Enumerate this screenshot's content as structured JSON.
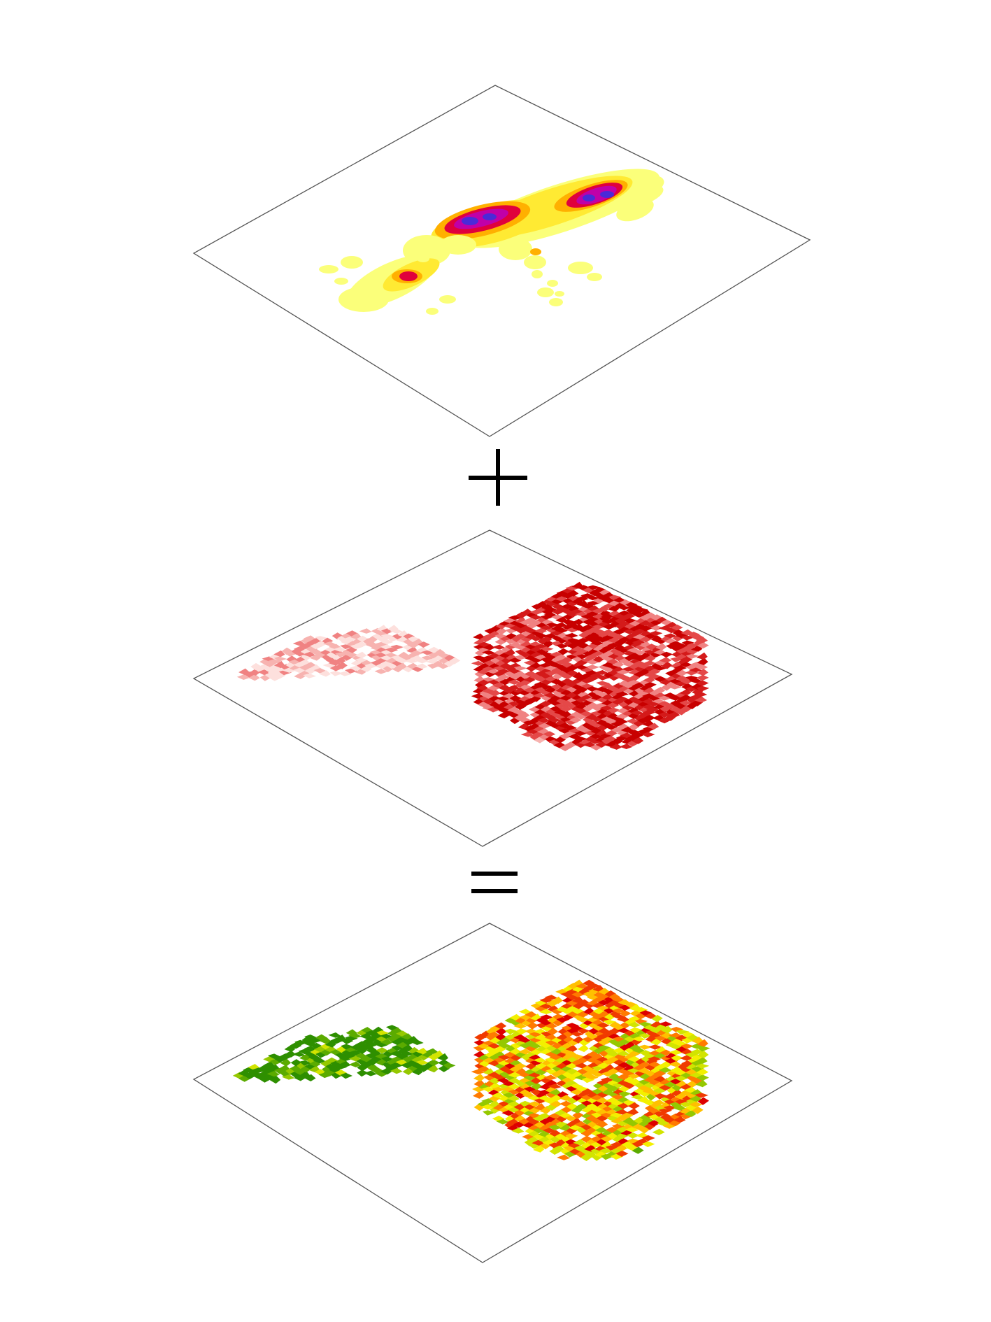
{
  "diagram": {
    "layers": [
      {
        "id": "density",
        "palette": [
          "#fbff7a",
          "#ffea33",
          "#ffb000",
          "#ff5a00",
          "#e0003c",
          "#c000a8",
          "#4a2ad8"
        ]
      },
      {
        "id": "choropleth",
        "palette": [
          "#fde0dd",
          "#f7b3b0",
          "#f08282",
          "#e44848",
          "#d41a1a",
          "#c80000"
        ]
      },
      {
        "id": "result",
        "palette": [
          "#2e8f00",
          "#5bab00",
          "#95c800",
          "#d2e400",
          "#f3f000",
          "#ffc000",
          "#ff7a00",
          "#f03a00",
          "#dd0000"
        ]
      }
    ],
    "operators": [
      {
        "symbol": "+"
      },
      {
        "symbol": "="
      }
    ]
  }
}
